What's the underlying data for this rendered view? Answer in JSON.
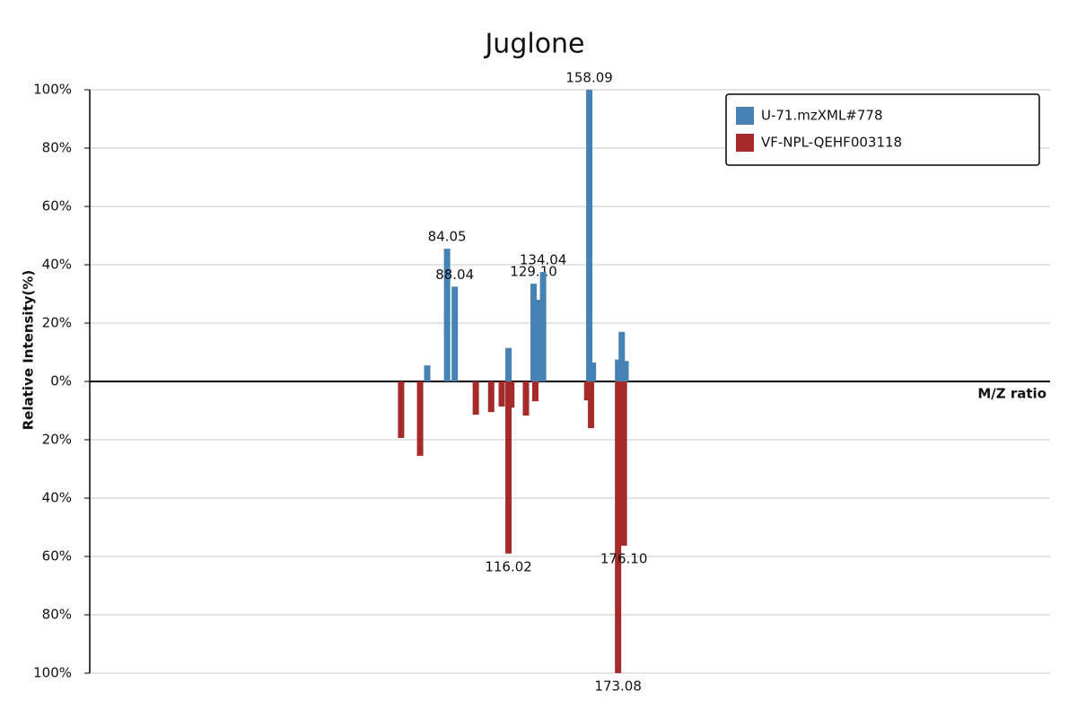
{
  "chart_data": {
    "type": "mirror-bar",
    "title": "Juglone",
    "y_label": "Relative Intensity(%)",
    "x_label": "M/Z ratio",
    "xlim": [
      -102,
      398
    ],
    "ylim": [
      -100,
      100
    ],
    "yticks": [
      {
        "value": -100,
        "label": "100%"
      },
      {
        "value": -80,
        "label": "80%"
      },
      {
        "value": -60,
        "label": "60%"
      },
      {
        "value": -40,
        "label": "40%"
      },
      {
        "value": -20,
        "label": "20%"
      },
      {
        "value": 0,
        "label": "0%"
      },
      {
        "value": 20,
        "label": "20%"
      },
      {
        "value": 40,
        "label": "40%"
      },
      {
        "value": 60,
        "label": "60%"
      },
      {
        "value": 80,
        "label": "80%"
      },
      {
        "value": 100,
        "label": "100%"
      }
    ],
    "grid": true,
    "legend": "upper right",
    "series": [
      {
        "name": "U-71.mzXML#778",
        "color": "#4682b4",
        "x": [
          73.7,
          84.05,
          88.04,
          116.02,
          129.1,
          131.0,
          134.04,
          158.09,
          160.0,
          173.08,
          175.0,
          177.0
        ],
        "values": [
          5.5,
          45.5,
          32.5,
          11.5,
          33.5,
          28,
          37.5,
          100,
          6.5,
          7.5,
          17,
          7
        ],
        "labels": [
          null,
          "84.05",
          "88.04",
          null,
          "129.10",
          null,
          "134.04",
          "158.09",
          null,
          null,
          null,
          null
        ]
      },
      {
        "name": "VF-NPL-QEHF003118",
        "color": "#a52a2a",
        "x": [
          60.1,
          70.0,
          99.0,
          107.0,
          112.5,
          116.02,
          117.5,
          125.1,
          130.0,
          157.0,
          159.0,
          173.08,
          176.1
        ],
        "values": [
          -19.4,
          -25.5,
          -11.4,
          -10.5,
          -8.6,
          -59,
          -9,
          -11.7,
          -6.8,
          -6.5,
          -16,
          -100,
          -56.3
        ],
        "labels": [
          null,
          null,
          null,
          null,
          null,
          "116.02",
          null,
          null,
          null,
          null,
          null,
          "173.08",
          "176.10"
        ]
      }
    ]
  }
}
